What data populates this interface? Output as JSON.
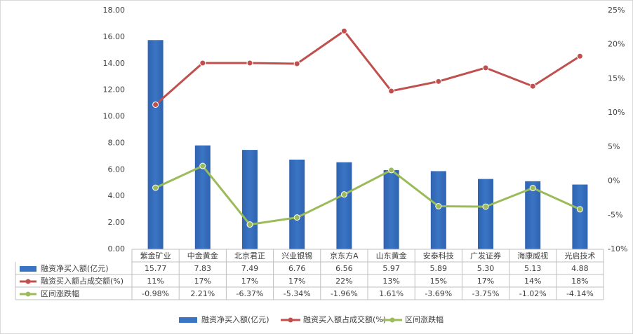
{
  "chart_data": {
    "type": "bar",
    "categories": [
      "紫金矿业",
      "中金黄金",
      "北京君正",
      "兴业银锡",
      "京东方A",
      "山东黄金",
      "安泰科技",
      "广发证券",
      "海康威视",
      "光启技术"
    ],
    "series": [
      {
        "name": "融资净买入额(亿元)",
        "type": "bar",
        "color": "#3a75c4",
        "values": [
          15.77,
          7.83,
          7.49,
          6.76,
          6.56,
          5.97,
          5.89,
          5.3,
          5.13,
          4.88
        ],
        "value_labels": [
          "15.77",
          "7.83",
          "7.49",
          "6.76",
          "6.56",
          "5.97",
          "5.89",
          "5.30",
          "5.13",
          "4.88"
        ]
      },
      {
        "name": "融资买入额占成交额(%)",
        "type": "line",
        "axis": "y2",
        "color": "#c0504d",
        "values": [
          11.2,
          17.3,
          17.3,
          17.2,
          22.0,
          13.2,
          14.6,
          16.6,
          13.9,
          18.3
        ],
        "value_labels": [
          "11%",
          "17%",
          "17%",
          "17%",
          "22%",
          "13%",
          "15%",
          "17%",
          "14%",
          "18%"
        ]
      },
      {
        "name": "区间涨跌幅",
        "type": "line",
        "axis": "y2",
        "color": "#9bbb59",
        "values": [
          -0.98,
          2.21,
          -6.37,
          -5.34,
          -1.96,
          1.61,
          -3.69,
          -3.75,
          -1.02,
          -4.14
        ],
        "value_labels": [
          "-0.98%",
          "2.21%",
          "-6.37%",
          "-5.34%",
          "-1.96%",
          "1.61%",
          "-3.69%",
          "-3.75%",
          "-1.02%",
          "-4.14%"
        ]
      }
    ],
    "ylim": [
      0,
      18
    ],
    "yticks": [
      {
        "value": 0,
        "label": "0.00"
      },
      {
        "value": 2,
        "label": "2.00"
      },
      {
        "value": 4,
        "label": "4.00"
      },
      {
        "value": 6,
        "label": "6.00"
      },
      {
        "value": 8,
        "label": "8.00"
      },
      {
        "value": 10,
        "label": "10.00"
      },
      {
        "value": 12,
        "label": "12.00"
      },
      {
        "value": 14,
        "label": "14.00"
      },
      {
        "value": 16,
        "label": "16.00"
      },
      {
        "value": 18,
        "label": "18.00"
      }
    ],
    "y2lim": [
      -10,
      25
    ],
    "y2ticks": [
      {
        "value": -10,
        "label": "-10%"
      },
      {
        "value": -5,
        "label": "-5%"
      },
      {
        "value": 0,
        "label": "0%"
      },
      {
        "value": 5,
        "label": "5%"
      },
      {
        "value": 10,
        "label": "10%"
      },
      {
        "value": 15,
        "label": "15%"
      },
      {
        "value": 20,
        "label": "20%"
      },
      {
        "value": 25,
        "label": "25%"
      }
    ],
    "grid": false,
    "data_table": true,
    "legend": "bottom"
  }
}
